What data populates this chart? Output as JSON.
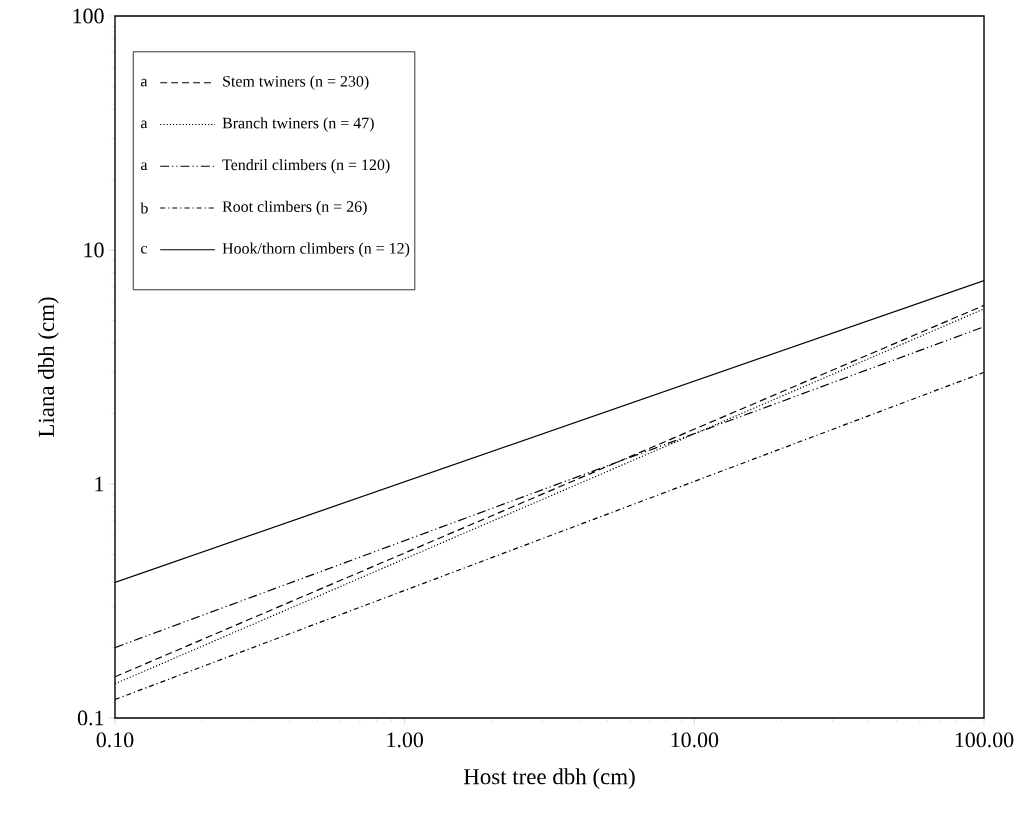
{
  "chart_data": {
    "type": "line",
    "xlabel": "Host tree dbh (cm)",
    "ylabel": "Liana dbh (cm)",
    "x": [
      0.1,
      100
    ],
    "series": [
      {
        "name": "Stem twiners (n = 230)",
        "color": "#000000",
        "line_style": "dashed",
        "values": [
          0.15,
          5.8
        ]
      },
      {
        "name": "Branch twiners (n = 47)",
        "color": "#000000",
        "line_style": "dotted",
        "values": [
          0.14,
          5.6
        ]
      },
      {
        "name": "Tendril climbers (n = 120)",
        "color": "#000000",
        "line_style": "dashdotdot",
        "values": [
          0.2,
          4.7
        ]
      },
      {
        "name": "Root climbers (n = 26)",
        "color": "#000000",
        "line_style": "dashdot",
        "values": [
          0.12,
          3.0
        ]
      },
      {
        "name": "Hook/thorn climbers (n = 12)",
        "color": "#000000",
        "line_style": "solid",
        "values": [
          0.38,
          7.4
        ]
      }
    ],
    "annotations": [
      "a",
      "a",
      "a",
      "b",
      "c"
    ],
    "log": "xy",
    "xlim": [
      0.1,
      100
    ],
    "ylim": [
      0.1,
      100
    ],
    "xticks": [
      {
        "value": 0.1,
        "label": "0.10"
      },
      {
        "value": 1,
        "label": "1.00"
      },
      {
        "value": 10,
        "label": "10.00"
      },
      {
        "value": 100,
        "label": "100.00"
      }
    ],
    "yticks": [
      0.1,
      1,
      10,
      100
    ],
    "grid": false,
    "legend": "top left",
    "marker": "none"
  }
}
